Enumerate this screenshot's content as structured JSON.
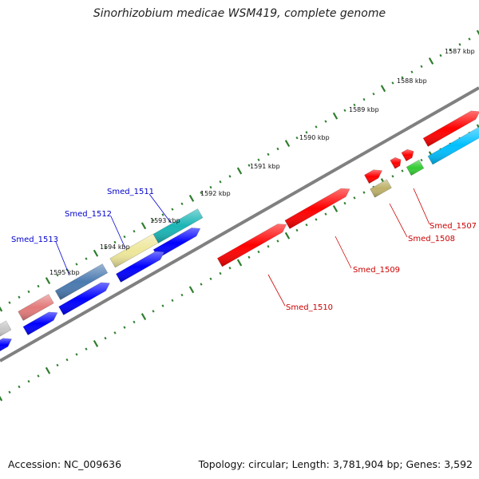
{
  "header": {
    "title": "Sinorhizobium medicae WSM419, complete genome"
  },
  "footer": {
    "accession": "Accession: NC_009636",
    "topology": "Topology: circular; Length: 3,781,904 bp; Genes: 3,592"
  },
  "map": {
    "tick_labels": [
      "1587 kbp",
      "1588 kbp",
      "1589 kbp",
      "1590 kbp",
      "1591 kbp",
      "1592 kbp",
      "1593 kbp",
      "1594 kbp",
      "1595 kbp"
    ],
    "gene_labels": [
      {
        "text": "Smed_1507",
        "color": "#cc0000"
      },
      {
        "text": "Smed_1508",
        "color": "#cc0000"
      },
      {
        "text": "Smed_1509",
        "color": "#cc0000"
      },
      {
        "text": "Smed_1510",
        "color": "#cc0000"
      },
      {
        "text": "Smed_1511",
        "color": "#0000cc"
      },
      {
        "text": "Smed_1512",
        "color": "#0000cc"
      },
      {
        "text": "Smed_1513",
        "color": "#0000cc"
      }
    ],
    "colors": {
      "backbone": "#808080",
      "tick": "#2e7d2e",
      "forward_cds": "#ff0000",
      "reverse_cds": "#0000ff",
      "cyan": "#00bfff",
      "teal": "#1ab5b5",
      "pale_yellow": "#eee79a",
      "steel_blue": "#4a7ab0",
      "pink": "#e37a7a",
      "olive": "#bdb16a",
      "green": "#33cc33",
      "gray": "#c8c8c8"
    }
  }
}
